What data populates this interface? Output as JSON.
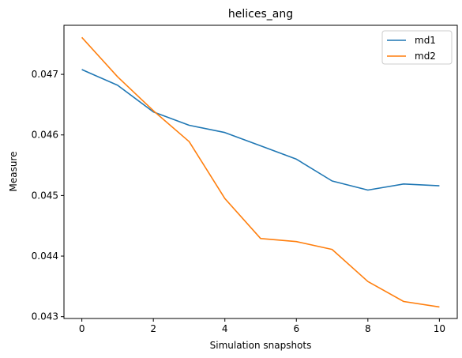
{
  "chart_data": {
    "type": "line",
    "title": "helices_ang",
    "xlabel": "Simulation snapshots",
    "ylabel": "Measure",
    "xlim": [
      -0.5,
      10.5
    ],
    "ylim": [
      0.04297,
      0.04781
    ],
    "xticks": [
      0,
      2,
      4,
      6,
      8,
      10
    ],
    "xtick_labels": [
      "0",
      "2",
      "4",
      "6",
      "8",
      "10"
    ],
    "yticks": [
      0.043,
      0.044,
      0.045,
      0.046,
      0.047
    ],
    "ytick_labels": [
      "0.043",
      "0.044",
      "0.045",
      "0.046",
      "0.047"
    ],
    "grid": false,
    "legend_position": "top-right",
    "x": [
      0,
      1,
      2,
      3,
      4,
      5,
      6,
      7,
      8,
      9,
      10
    ],
    "series": [
      {
        "name": "md1",
        "color": "#1f77b4",
        "values": [
          0.04708,
          0.04682,
          0.04638,
          0.04616,
          0.04604,
          0.04582,
          0.0456,
          0.04524,
          0.04509,
          0.04519,
          0.04516
        ]
      },
      {
        "name": "md2",
        "color": "#ff7f0e",
        "values": [
          0.04761,
          0.04696,
          0.0464,
          0.04589,
          0.04495,
          0.04429,
          0.04424,
          0.04411,
          0.04358,
          0.04325,
          0.04316
        ]
      }
    ]
  }
}
